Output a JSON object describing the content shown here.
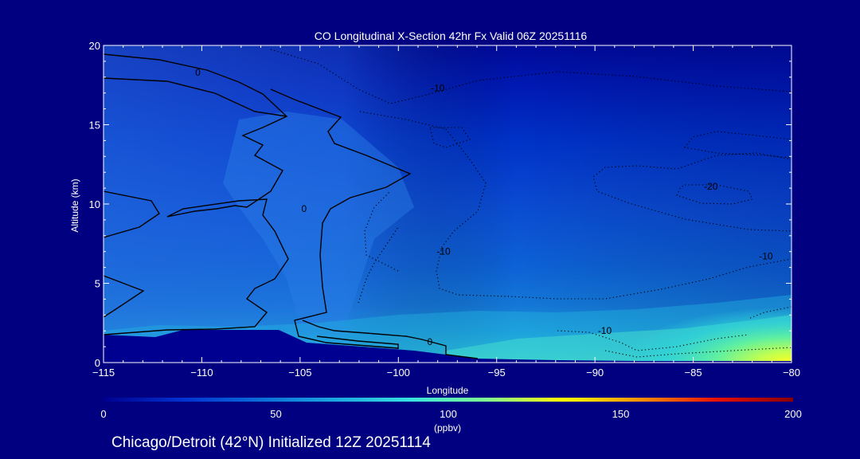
{
  "chart_data": {
    "type": "heatmap",
    "title": "CO Longitudinal X-Section 42hr  Fx Valid 06Z 20251116",
    "xlabel": "Longitude",
    "ylabel": "Altitude (km)",
    "x_ticks": [
      "-115",
      "-110",
      "-105",
      "-100",
      "-95",
      "-90",
      "-85",
      "-80"
    ],
    "y_ticks": [
      "0",
      "5",
      "10",
      "15",
      "20"
    ],
    "xlim": [
      -115,
      -80
    ],
    "ylim": [
      0,
      20
    ],
    "colorbar": {
      "ticks": [
        "0",
        "50",
        "100",
        "150",
        "200"
      ],
      "unit": "(ppbv)",
      "range": [
        0,
        200
      ],
      "colors": [
        "#000090",
        "#0030d0",
        "#0a6ad8",
        "#1aa6e0",
        "#38e0e0",
        "#80ff90",
        "#ffff00",
        "#ff9000",
        "#e81000",
        "#8a0000"
      ]
    },
    "contour_labels": [
      {
        "text": "0",
        "lon": -110.2,
        "alt": 18.3
      },
      {
        "text": "0",
        "lon": -104.8,
        "alt": 9.7
      },
      {
        "text": "0",
        "lon": -98.4,
        "alt": 1.3
      },
      {
        "text": "-10",
        "lon": -98.0,
        "alt": 17.3
      },
      {
        "text": "-10",
        "lon": -97.7,
        "alt": 7.0
      },
      {
        "text": "-10",
        "lon": -89.5,
        "alt": 2.0
      },
      {
        "text": "-10",
        "lon": -81.3,
        "alt": 6.7
      },
      {
        "text": "-20",
        "lon": -84.1,
        "alt": 11.1
      }
    ],
    "fields": [
      {
        "name": "co_background_levels_ppbv",
        "values": [
          {
            "alt": 20,
            "co": 10
          },
          {
            "alt": 18,
            "co": 14
          },
          {
            "alt": 16,
            "co": 20
          },
          {
            "alt": 14,
            "co": 26
          },
          {
            "alt": 12,
            "co": 30
          },
          {
            "alt": 10,
            "co": 34
          },
          {
            "alt": 8,
            "co": 38
          },
          {
            "alt": 6,
            "co": 44
          },
          {
            "alt": 4,
            "co": 52
          },
          {
            "alt": 2,
            "co": 62
          },
          {
            "alt": 1,
            "co": 70
          }
        ]
      },
      {
        "name": "co_surface_max_ppbv",
        "lon": -80.5,
        "alt": 0.4,
        "co": 108
      }
    ]
  },
  "footer": {
    "text": "Chicago/Detroit (42°N) Initialized 12Z 20251114"
  },
  "colors": {
    "background": "#000080",
    "terrain": "#000090",
    "contour": "#000000",
    "text": "#ffffff"
  }
}
